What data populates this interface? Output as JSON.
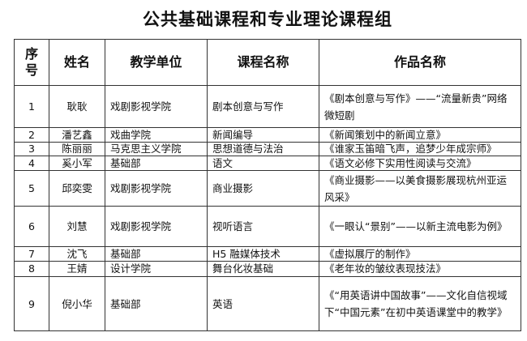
{
  "title": "公共基础课程和专业理论课程组",
  "headers": [
    "序号",
    "姓名",
    "教学单位",
    "课程名称",
    "作品名称"
  ],
  "rows": [
    {
      "no": "1",
      "name": "耿耿",
      "unit": "戏剧影视学院",
      "course": "剧本创意与写作",
      "work": "《剧本创意与写作》——“流量新贵”网络微短剧"
    },
    {
      "no": "2",
      "name": "潘艺鑫",
      "unit": "戏曲学院",
      "course": "新闻编导",
      "work": "《新闻策划中的新闻立意》"
    },
    {
      "no": "3",
      "name": "陈丽丽",
      "unit": "马克思主义学院",
      "course": "思想道德与法治",
      "work": "《谁家玉笛暗飞声，追梦少年成宗师》"
    },
    {
      "no": "4",
      "name": "奚小军",
      "unit": "基础部",
      "course": "语文",
      "work": "《语文必修下实用性阅读与交流》"
    },
    {
      "no": "5",
      "name": "邱奕雯",
      "unit": "戏剧影视学院",
      "course": "商业摄影",
      "work": "《商业摄影——以美食摄影展现杭州亚运风采》"
    },
    {
      "no": "6",
      "name": "刘慧",
      "unit": "戏剧影视学院",
      "course": "视听语言",
      "work": "《一眼认“景别”——以新主流电影为例》"
    },
    {
      "no": "7",
      "name": "沈飞",
      "unit": "基础部",
      "course": "H5 融媒体技术",
      "work": "《虚拟展厅的制作》"
    },
    {
      "no": "8",
      "name": "王婧",
      "unit": "设计学院",
      "course": "舞台化妆基础",
      "work": "《老年妆的皱纹表现技法》"
    },
    {
      "no": "9",
      "name": "倪小华",
      "unit": "基础部",
      "course": "英语",
      "work": "《“用英语讲中国故事”——文化自信视域下“中国元素”在初中英语课堂中的教学》"
    }
  ]
}
